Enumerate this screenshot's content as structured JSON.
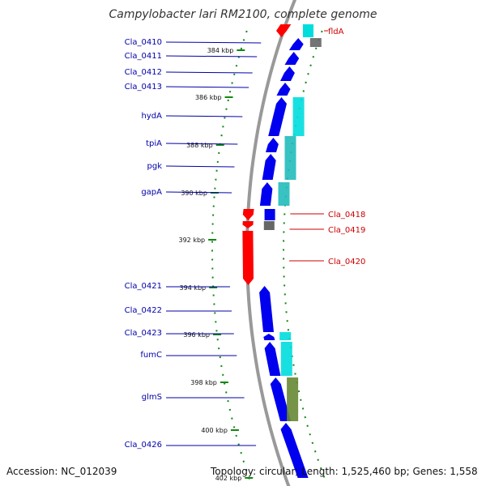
{
  "title": "Campylobacter lari RM2100, complete genome",
  "footer": {
    "accession": "Accession: NC_012039",
    "summary": "Topology: circular; Length: 1,525,460 bp; Genes: 1,558"
  },
  "colors": {
    "forward_cds": "#0000ee",
    "reverse_cds": "#ff0000",
    "function_cyan": "#00dddd",
    "function_teal": "#22bbbb",
    "function_olive": "#668833",
    "function_gray": "#666666",
    "backbone": "#999999",
    "tick": "#118811",
    "label_forward": "#0000aa",
    "label_reverse": "#cc0000"
  },
  "ticks": [
    {
      "label": "384 kbp"
    },
    {
      "label": "386 kbp"
    },
    {
      "label": "388 kbp"
    },
    {
      "label": "390 kbp"
    },
    {
      "label": "392 kbp"
    },
    {
      "label": "394 kbp"
    },
    {
      "label": "396 kbp"
    },
    {
      "label": "398 kbp"
    },
    {
      "label": "400 kbp"
    },
    {
      "label": "402 kbp"
    }
  ],
  "genes": [
    {
      "name": "Cla_0410",
      "strand": "+"
    },
    {
      "name": "Cla_0411",
      "strand": "+"
    },
    {
      "name": "Cla_0412",
      "strand": "+"
    },
    {
      "name": "Cla_0413",
      "strand": "+"
    },
    {
      "name": "hydA",
      "strand": "+"
    },
    {
      "name": "tpiA",
      "strand": "+"
    },
    {
      "name": "pgk",
      "strand": "+"
    },
    {
      "name": "gapA",
      "strand": "+"
    },
    {
      "name": "Cla_0421",
      "strand": "+"
    },
    {
      "name": "Cla_0422",
      "strand": "+"
    },
    {
      "name": "Cla_0423",
      "strand": "+"
    },
    {
      "name": "fumC",
      "strand": "+"
    },
    {
      "name": "glmS",
      "strand": "+"
    },
    {
      "name": "Cla_0426",
      "strand": "+"
    },
    {
      "name": "fldA",
      "strand": "-"
    },
    {
      "name": "Cla_0418",
      "strand": "-"
    },
    {
      "name": "Cla_0419",
      "strand": "-"
    },
    {
      "name": "Cla_0420",
      "strand": "-"
    }
  ]
}
